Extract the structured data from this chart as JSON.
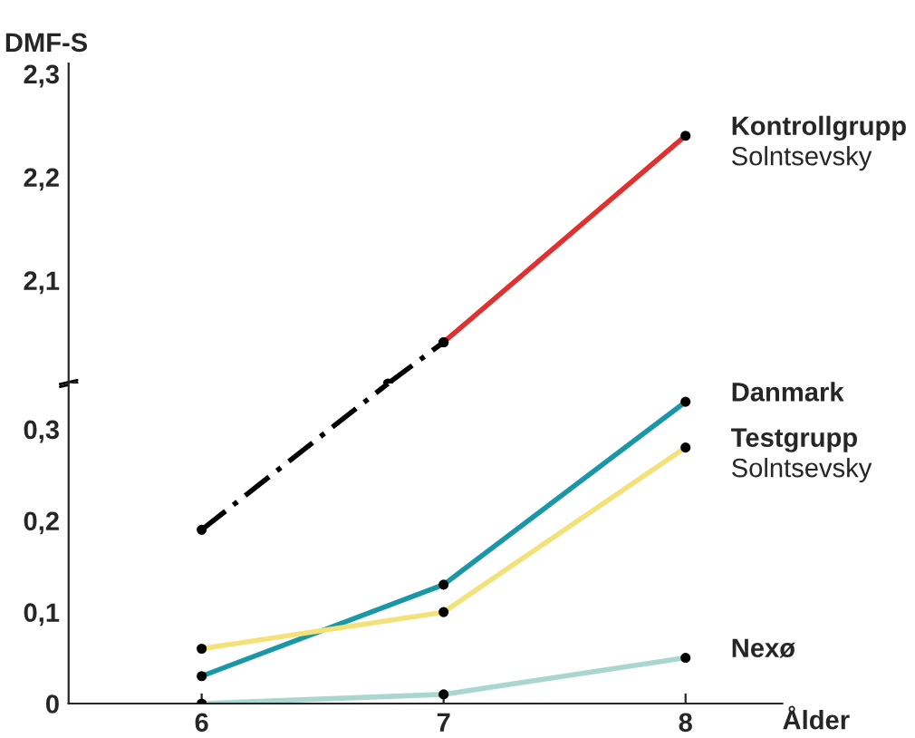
{
  "chart_data": [
    {
      "type": "line",
      "ylabel": "DMF-S",
      "xlim": [
        5.45,
        8.4
      ],
      "xticks": [
        6,
        7,
        8
      ],
      "ylim": [
        2.0,
        2.31
      ],
      "tick_labels": "y",
      "yticks": [
        {
          "value": 2.1,
          "label": "2,1"
        },
        {
          "value": 2.2,
          "label": "2,2"
        },
        {
          "value": 2.3,
          "label": "2,3"
        }
      ],
      "marker": "circle",
      "grid": false,
      "legend": false,
      "series": [
        {
          "color": "#000000",
          "line_style": "dashed",
          "marker": "circle",
          "x": [
            6.77,
            7
          ],
          "values": [
            2.0,
            2.04
          ]
        },
        {
          "name": "Kontrollgrupp\nSolntsevsky",
          "color": "#e03030",
          "x": [
            7,
            8
          ],
          "values": [
            2.04,
            2.24
          ]
        }
      ]
    },
    {
      "type": "line",
      "xlabel": "Ålder",
      "x": [
        6,
        7,
        8
      ],
      "xlim": [
        5.45,
        8.4
      ],
      "xticks": [
        6,
        7,
        8
      ],
      "ylim": [
        0,
        0.35
      ],
      "yticks": [
        0,
        {
          "value": 0.1,
          "label": "0,1"
        },
        {
          "value": 0.2,
          "label": "0,2"
        },
        {
          "value": 0.3,
          "label": "0,3"
        }
      ],
      "marker": "circle",
      "grid": false,
      "legend": false,
      "series": [
        {
          "color": "#000000",
          "line_style": "dashed",
          "marker": "none",
          "x": [
            6,
            6.77
          ],
          "values": [
            0.19,
            0.35
          ]
        },
        {
          "color": "#000000",
          "line_style": "solid",
          "marker": "circle",
          "x": [
            6
          ],
          "values": [
            0.19
          ]
        },
        {
          "name": "Danmark",
          "color": "#1a97a6",
          "values": [
            0.03,
            0.13,
            0.33
          ]
        },
        {
          "name": "Testgrupp\nSolntsevsky",
          "color": "#f3e27a",
          "values": [
            0.06,
            0.1,
            0.28
          ]
        },
        {
          "name": "Nexø",
          "color": "#a9d6cf",
          "values": [
            0,
            0.01,
            0.05
          ]
        }
      ]
    }
  ]
}
